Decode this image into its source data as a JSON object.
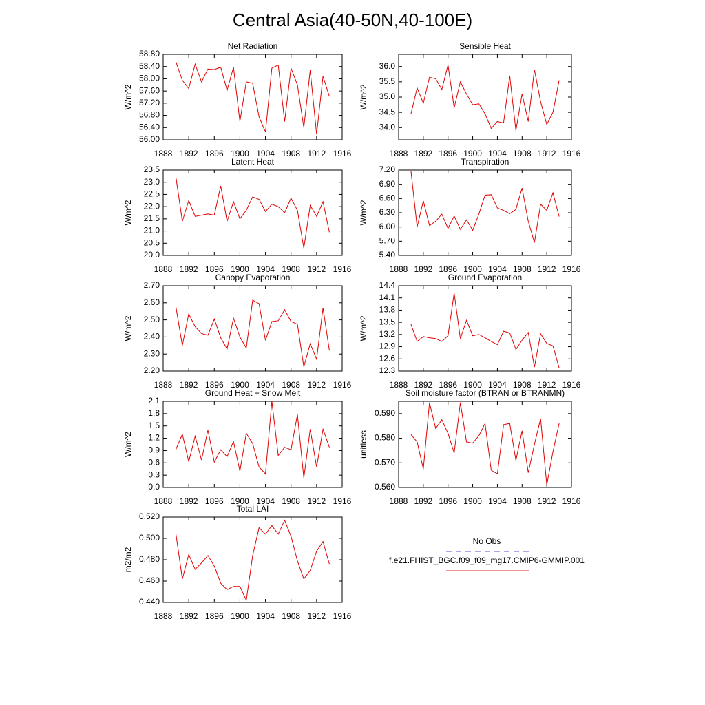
{
  "title": "Central Asia(40-50N,40-100E)",
  "legend": [
    {
      "label": "No Obs",
      "color": "#5050c8",
      "dashed": true
    },
    {
      "label": "f.e21.FHIST_BGC.f09_f09_mg17.CMIP6-GMMIP.001",
      "color": "#e02020",
      "dashed": false
    }
  ],
  "chart_data": [
    {
      "type": "line",
      "title": "Net Radiation",
      "ylabel": "W/m^2",
      "color": "#e00000",
      "x": [
        1890,
        1891,
        1892,
        1893,
        1894,
        1895,
        1896,
        1897,
        1898,
        1899,
        1900,
        1901,
        1902,
        1903,
        1904,
        1905,
        1906,
        1907,
        1908,
        1909,
        1910,
        1911,
        1912,
        1913,
        1914
      ],
      "values": [
        58.55,
        57.95,
        57.68,
        58.48,
        57.9,
        58.32,
        58.3,
        58.38,
        57.62,
        58.38,
        56.6,
        57.9,
        57.85,
        56.75,
        56.25,
        58.35,
        58.45,
        56.6,
        58.35,
        57.8,
        56.4,
        58.28,
        56.18,
        58.08,
        57.42
      ],
      "xlim": [
        1888,
        1916
      ],
      "xticks": [
        1888,
        1892,
        1896,
        1900,
        1904,
        1908,
        1912,
        1916
      ],
      "ylim": [
        56.0,
        58.8
      ],
      "yticks": [
        {
          "value": 56.0,
          "label": "56.00"
        },
        {
          "value": 56.4,
          "label": "56.40"
        },
        {
          "value": 56.8,
          "label": "56.80"
        },
        {
          "value": 57.2,
          "label": "57.20"
        },
        {
          "value": 57.6,
          "label": "57.60"
        },
        {
          "value": 58.0,
          "label": "58.00"
        },
        {
          "value": 58.4,
          "label": "58.40"
        },
        {
          "value": 58.8,
          "label": "58.80"
        }
      ]
    },
    {
      "type": "line",
      "title": "Sensible Heat",
      "ylabel": "W/m^2",
      "color": "#e00000",
      "x": [
        1890,
        1891,
        1892,
        1893,
        1894,
        1895,
        1896,
        1897,
        1898,
        1899,
        1900,
        1901,
        1902,
        1903,
        1904,
        1905,
        1906,
        1907,
        1908,
        1909,
        1910,
        1911,
        1912,
        1913,
        1914
      ],
      "values": [
        34.45,
        35.3,
        34.8,
        35.65,
        35.6,
        35.25,
        36.05,
        34.65,
        35.5,
        35.1,
        34.75,
        34.78,
        34.45,
        33.97,
        34.2,
        34.15,
        35.7,
        33.9,
        35.1,
        34.2,
        35.9,
        34.85,
        34.1,
        34.5,
        35.55
      ],
      "xlim": [
        1888,
        1916
      ],
      "xticks": [
        1888,
        1892,
        1896,
        1900,
        1904,
        1908,
        1912,
        1916
      ],
      "ylim": [
        33.6,
        36.4
      ],
      "yticks": [
        {
          "value": 34,
          "label": "34.0"
        },
        34.5,
        {
          "value": 35,
          "label": "35.0"
        },
        35.5,
        {
          "value": 36,
          "label": "36.0"
        }
      ]
    },
    {
      "type": "line",
      "title": "Latent Heat",
      "ylabel": "W/m^2",
      "color": "#e00000",
      "x": [
        1890,
        1891,
        1892,
        1893,
        1894,
        1895,
        1896,
        1897,
        1898,
        1899,
        1900,
        1901,
        1902,
        1903,
        1904,
        1905,
        1906,
        1907,
        1908,
        1909,
        1910,
        1911,
        1912,
        1913,
        1914
      ],
      "values": [
        23.2,
        21.4,
        22.25,
        21.6,
        21.65,
        21.7,
        21.65,
        22.85,
        21.4,
        22.2,
        21.5,
        21.85,
        22.4,
        22.3,
        21.8,
        22.1,
        22.0,
        21.75,
        22.35,
        21.85,
        20.3,
        22.05,
        21.6,
        22.2,
        20.95
      ],
      "xlim": [
        1888,
        1916
      ],
      "xticks": [
        1888,
        1892,
        1896,
        1900,
        1904,
        1908,
        1912,
        1916
      ],
      "ylim": [
        20.0,
        23.5
      ],
      "yticks": [
        {
          "value": 20,
          "label": "20.0"
        },
        20.5,
        {
          "value": 21,
          "label": "21.0"
        },
        21.5,
        {
          "value": 22,
          "label": "22.0"
        },
        22.5,
        {
          "value": 23,
          "label": "23.0"
        },
        23.5
      ]
    },
    {
      "type": "line",
      "title": "Transpiration",
      "ylabel": "W/m^2",
      "color": "#e00000",
      "x": [
        1890,
        1891,
        1892,
        1893,
        1894,
        1895,
        1896,
        1897,
        1898,
        1899,
        1900,
        1901,
        1902,
        1903,
        1904,
        1905,
        1906,
        1907,
        1908,
        1909,
        1910,
        1911,
        1912,
        1913,
        1914
      ],
      "values": [
        7.18,
        6.0,
        6.55,
        6.03,
        6.12,
        6.27,
        5.97,
        6.23,
        5.95,
        6.15,
        5.93,
        6.27,
        6.67,
        6.68,
        6.4,
        6.35,
        6.28,
        6.37,
        6.82,
        6.12,
        5.67,
        6.48,
        6.35,
        6.72,
        6.22
      ],
      "xlim": [
        1888,
        1916
      ],
      "xticks": [
        1888,
        1892,
        1896,
        1900,
        1904,
        1908,
        1912,
        1916
      ],
      "ylim": [
        5.4,
        7.2
      ],
      "yticks": [
        {
          "value": 5.4,
          "label": "5.40"
        },
        {
          "value": 5.7,
          "label": "5.70"
        },
        {
          "value": 6.0,
          "label": "6.00"
        },
        {
          "value": 6.3,
          "label": "6.30"
        },
        {
          "value": 6.6,
          "label": "6.60"
        },
        {
          "value": 6.9,
          "label": "6.90"
        },
        {
          "value": 7.2,
          "label": "7.20"
        }
      ]
    },
    {
      "type": "line",
      "title": "Canopy Evaporation",
      "ylabel": "W/m^2",
      "color": "#e00000",
      "x": [
        1890,
        1891,
        1892,
        1893,
        1894,
        1895,
        1896,
        1897,
        1898,
        1899,
        1900,
        1901,
        1902,
        1903,
        1904,
        1905,
        1906,
        1907,
        1908,
        1909,
        1910,
        1911,
        1912,
        1913,
        1914
      ],
      "values": [
        2.575,
        2.35,
        2.535,
        2.46,
        2.42,
        2.41,
        2.505,
        2.395,
        2.33,
        2.51,
        2.4,
        2.335,
        2.615,
        2.595,
        2.38,
        2.49,
        2.495,
        2.56,
        2.49,
        2.475,
        2.225,
        2.36,
        2.27,
        2.57,
        2.32
      ],
      "xlim": [
        1888,
        1916
      ],
      "xticks": [
        1888,
        1892,
        1896,
        1900,
        1904,
        1908,
        1912,
        1916
      ],
      "ylim": [
        2.2,
        2.7
      ],
      "yticks": [
        {
          "value": 2.2,
          "label": "2.20"
        },
        {
          "value": 2.3,
          "label": "2.30"
        },
        {
          "value": 2.4,
          "label": "2.40"
        },
        {
          "value": 2.5,
          "label": "2.50"
        },
        {
          "value": 2.6,
          "label": "2.60"
        },
        {
          "value": 2.7,
          "label": "2.70"
        }
      ]
    },
    {
      "type": "line",
      "title": "Ground Evaporation",
      "ylabel": "W/m^2",
      "color": "#e00000",
      "x": [
        1890,
        1891,
        1892,
        1893,
        1894,
        1895,
        1896,
        1897,
        1898,
        1899,
        1900,
        1901,
        1902,
        1903,
        1904,
        1905,
        1906,
        1907,
        1908,
        1909,
        1910,
        1911,
        1912,
        1913,
        1914
      ],
      "values": [
        13.45,
        13.03,
        13.15,
        13.12,
        13.1,
        13.03,
        13.17,
        14.22,
        13.1,
        13.55,
        13.17,
        13.2,
        13.12,
        13.03,
        12.95,
        13.28,
        13.24,
        12.83,
        13.06,
        13.25,
        12.4,
        13.22,
        12.98,
        12.92,
        12.38
      ],
      "xlim": [
        1888,
        1916
      ],
      "xticks": [
        1888,
        1892,
        1896,
        1900,
        1904,
        1908,
        1912,
        1916
      ],
      "ylim": [
        12.3,
        14.4
      ],
      "yticks": [
        12.3,
        12.6,
        12.9,
        13.2,
        13.5,
        13.8,
        14.1,
        14.4
      ]
    },
    {
      "type": "line",
      "title": "Ground Heat + Snow Melt",
      "ylabel": "W/m^2",
      "color": "#e00000",
      "x": [
        1890,
        1891,
        1892,
        1893,
        1894,
        1895,
        1896,
        1897,
        1898,
        1899,
        1900,
        1901,
        1902,
        1903,
        1904,
        1905,
        1906,
        1907,
        1908,
        1909,
        1910,
        1911,
        1912,
        1913,
        1914
      ],
      "values": [
        0.93,
        1.3,
        0.63,
        1.25,
        0.67,
        1.4,
        0.62,
        0.92,
        0.75,
        1.12,
        0.4,
        1.32,
        1.07,
        0.5,
        0.33,
        2.1,
        0.78,
        0.98,
        0.92,
        1.78,
        0.23,
        1.42,
        0.5,
        1.42,
        0.98
      ],
      "xlim": [
        1888,
        1916
      ],
      "xticks": [
        1888,
        1892,
        1896,
        1900,
        1904,
        1908,
        1912,
        1916
      ],
      "ylim": [
        0.0,
        2.1
      ],
      "yticks": [
        {
          "value": 0,
          "label": "0.0"
        },
        0.3,
        0.6,
        0.9,
        1.2,
        1.5,
        1.8,
        2.1
      ]
    },
    {
      "type": "line",
      "title": "Soil moisture factor (BTRAN or BTRANMN)",
      "ylabel": "unitless",
      "color": "#e00000",
      "x": [
        1890,
        1891,
        1892,
        1893,
        1894,
        1895,
        1896,
        1897,
        1898,
        1899,
        1900,
        1901,
        1902,
        1903,
        1904,
        1905,
        1906,
        1907,
        1908,
        1909,
        1910,
        1911,
        1912,
        1913,
        1914
      ],
      "values": [
        0.5815,
        0.5785,
        0.5675,
        0.5945,
        0.584,
        0.5875,
        0.582,
        0.574,
        0.5945,
        0.5785,
        0.578,
        0.581,
        0.586,
        0.567,
        0.5655,
        0.5855,
        0.586,
        0.571,
        0.583,
        0.566,
        0.5775,
        0.588,
        0.561,
        0.5745,
        0.586
      ],
      "xlim": [
        1888,
        1916
      ],
      "xticks": [
        1888,
        1892,
        1896,
        1900,
        1904,
        1908,
        1912,
        1916
      ],
      "ylim": [
        0.56,
        0.595
      ],
      "yticks": [
        {
          "value": 0.56,
          "label": "0.560"
        },
        {
          "value": 0.57,
          "label": "0.570"
        },
        {
          "value": 0.58,
          "label": "0.580"
        },
        {
          "value": 0.59,
          "label": "0.590"
        }
      ]
    },
    {
      "type": "line",
      "title": "Total LAI",
      "ylabel": "m2/m2",
      "color": "#e00000",
      "x": [
        1890,
        1891,
        1892,
        1893,
        1894,
        1895,
        1896,
        1897,
        1898,
        1899,
        1900,
        1901,
        1902,
        1903,
        1904,
        1905,
        1906,
        1907,
        1908,
        1909,
        1910,
        1911,
        1912,
        1913,
        1914
      ],
      "values": [
        0.504,
        0.462,
        0.485,
        0.471,
        0.477,
        0.484,
        0.474,
        0.458,
        0.452,
        0.455,
        0.455,
        0.442,
        0.484,
        0.51,
        0.504,
        0.512,
        0.504,
        0.517,
        0.502,
        0.479,
        0.462,
        0.47,
        0.488,
        0.497,
        0.476
      ],
      "xlim": [
        1888,
        1916
      ],
      "xticks": [
        1888,
        1892,
        1896,
        1900,
        1904,
        1908,
        1912,
        1916
      ],
      "ylim": [
        0.44,
        0.52
      ],
      "yticks": [
        {
          "value": 0.44,
          "label": "0.440"
        },
        {
          "value": 0.46,
          "label": "0.460"
        },
        {
          "value": 0.48,
          "label": "0.480"
        },
        {
          "value": 0.5,
          "label": "0.500"
        },
        {
          "value": 0.52,
          "label": "0.520"
        }
      ]
    }
  ]
}
